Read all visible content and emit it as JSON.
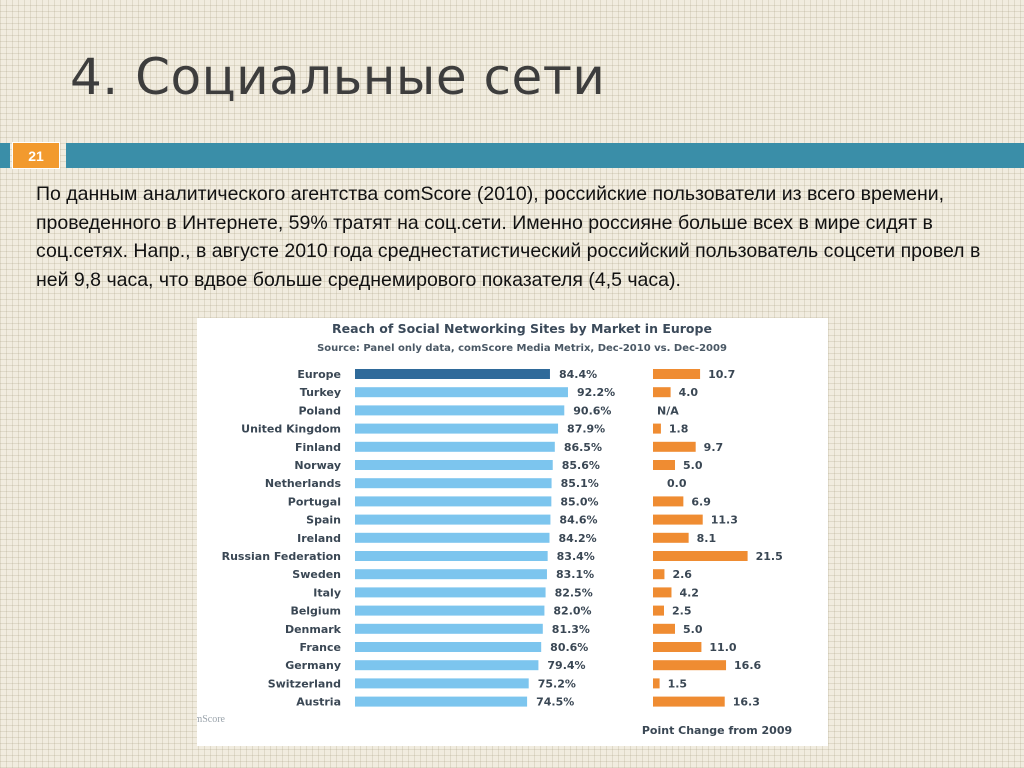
{
  "slide": {
    "title": "4. Социальные сети",
    "number": "21",
    "body": "По данным аналитического агентства comScore (2010), российские пользователи из всего времени, проведенного в Интернете, 59% тратят на соц.сети. Именно россияне больше всех в мире сидят в соц.сетях. Напр., в августе 2010 года  среднестатистический российский пользователь соцсети провел в ней 9,8 часа, что вдвое больше среднемирового показателя (4,5 часа)."
  },
  "colors": {
    "accent_band": "#3a8ea8",
    "slide_number_bg": "#f29a2e",
    "bar_highlight": "#2f6a9a",
    "bar_default": "#7cc5ee",
    "bar_change": "#ef8c32"
  },
  "chart_data": {
    "type": "bar",
    "title": "Reach of Social Networking Sites by Market in Europe",
    "subtitle": "Source: Panel only data, comScore Media Metrix, Dec-2010 vs. Dec-2009",
    "categories": [
      "Europe",
      "Turkey",
      "Poland",
      "United Kingdom",
      "Finland",
      "Norway",
      "Netherlands",
      "Portugal",
      "Spain",
      "Ireland",
      "Russian Federation",
      "Sweden",
      "Italy",
      "Belgium",
      "Denmark",
      "France",
      "Germany",
      "Switzerland",
      "Austria"
    ],
    "series": [
      {
        "values": [
          84.4,
          92.2,
          90.6,
          87.9,
          86.5,
          85.6,
          85.1,
          85.0,
          84.6,
          84.2,
          83.4,
          83.1,
          82.5,
          82.0,
          81.3,
          80.6,
          79.4,
          75.2,
          74.5
        ],
        "labels": [
          "84.4%",
          "92.2%",
          "90.6%",
          "87.9%",
          "86.5%",
          "85.6%",
          "85.1%",
          "85.0%",
          "84.6%",
          "84.2%",
          "83.4%",
          "83.1%",
          "82.5%",
          "82.0%",
          "81.3%",
          "80.6%",
          "79.4%",
          "75.2%",
          "74.5%"
        ]
      },
      {
        "name": "Point Change from 2009",
        "values": [
          10.7,
          4.0,
          null,
          1.8,
          9.7,
          5.0,
          0.0,
          6.9,
          11.3,
          8.1,
          21.5,
          2.6,
          4.2,
          2.5,
          5.0,
          11.0,
          16.6,
          1.5,
          16.3
        ],
        "labels": [
          "10.7",
          "4.0",
          "N/A",
          "1.8",
          "9.7",
          "5.0",
          "0.0",
          "6.9",
          "11.3",
          "8.1",
          "21.5",
          "2.6",
          "4.2",
          "2.5",
          "5.0",
          "11.0",
          "16.6",
          "1.5",
          "16.3"
        ]
      }
    ],
    "highlight_category": "Europe",
    "source_logo": "comScore"
  }
}
